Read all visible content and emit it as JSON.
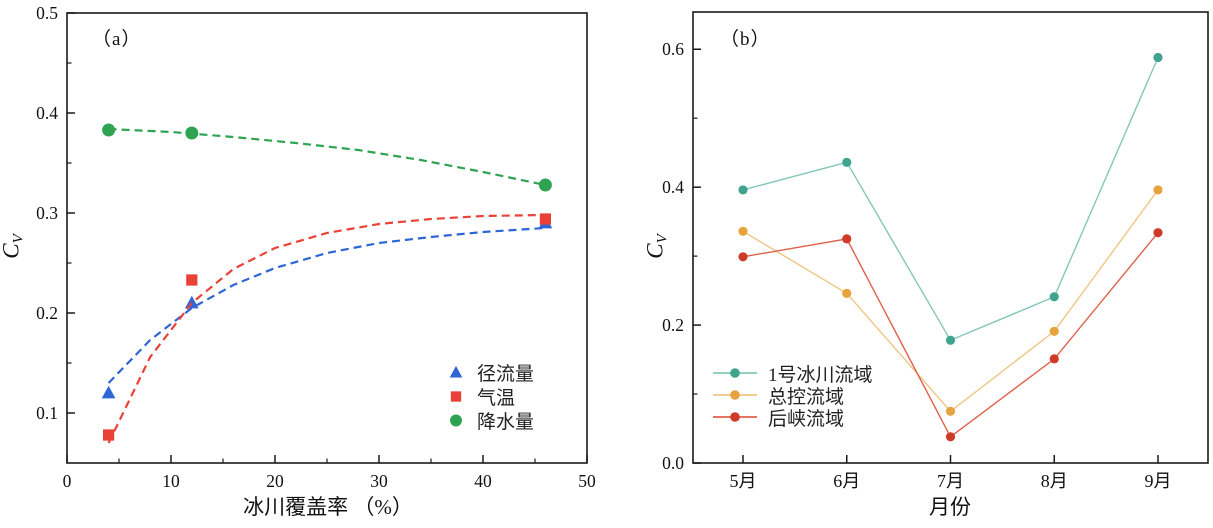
{
  "figure": {
    "background": "#ffffff",
    "axis_color": "#1a1a1a"
  },
  "chart_data": [
    {
      "panel": "a",
      "type": "scatter",
      "title": "（a）",
      "xlabel": "冰川覆盖率 （%）",
      "ylabel_main": "C",
      "ylabel_sub": "V",
      "xlim": [
        0,
        50
      ],
      "ylim": [
        0.05,
        0.5
      ],
      "xticks": [
        0,
        10,
        20,
        30,
        40,
        50
      ],
      "xtick_labels": [
        "0",
        "10",
        "20",
        "30",
        "40",
        "50"
      ],
      "yticks": [
        0.1,
        0.2,
        0.3,
        0.4,
        0.5
      ],
      "ytick_labels": [
        "0.1",
        "0.2",
        "0.3",
        "0.4",
        "0.5"
      ],
      "x_minor_step": 5,
      "y_minor_step": 0.05,
      "grid": false,
      "legend_position": "lower-right",
      "series": [
        {
          "name": "径流量",
          "marker": "triangle",
          "color": "#2e66d6",
          "x": [
            4,
            12,
            46
          ],
          "y": [
            0.12,
            0.21,
            0.29
          ],
          "trend_style": "dashed",
          "trend": [
            [
              4,
              0.13
            ],
            [
              8,
              0.173
            ],
            [
              12,
              0.205
            ],
            [
              16,
              0.228
            ],
            [
              20,
              0.245
            ],
            [
              25,
              0.26
            ],
            [
              30,
              0.27
            ],
            [
              35,
              0.276
            ],
            [
              40,
              0.281
            ],
            [
              46,
              0.285
            ]
          ]
        },
        {
          "name": "气温",
          "marker": "square",
          "color": "#e94138",
          "x": [
            4,
            12,
            46
          ],
          "y": [
            0.078,
            0.233,
            0.294
          ],
          "trend_style": "dashed",
          "trend": [
            [
              4,
              0.07
            ],
            [
              8,
              0.156
            ],
            [
              12,
              0.21
            ],
            [
              16,
              0.244
            ],
            [
              20,
              0.265
            ],
            [
              25,
              0.28
            ],
            [
              30,
              0.289
            ],
            [
              35,
              0.294
            ],
            [
              40,
              0.297
            ],
            [
              46,
              0.298
            ]
          ]
        },
        {
          "name": "降水量",
          "marker": "circle",
          "color": "#2fa351",
          "x": [
            4,
            12,
            46
          ],
          "y": [
            0.383,
            0.38,
            0.328
          ],
          "trend_style": "dashed",
          "trend": [
            [
              4,
              0.384
            ],
            [
              10,
              0.381
            ],
            [
              16,
              0.376
            ],
            [
              22,
              0.37
            ],
            [
              28,
              0.363
            ],
            [
              34,
              0.353
            ],
            [
              40,
              0.341
            ],
            [
              46,
              0.328
            ]
          ]
        }
      ]
    },
    {
      "panel": "b",
      "type": "line",
      "title": "（b）",
      "xlabel": "月份",
      "ylabel_main": "C",
      "ylabel_sub": "V",
      "categories": [
        "5月",
        "6月",
        "7月",
        "8月",
        "9月"
      ],
      "ylim": [
        0,
        0.654
      ],
      "yticks": [
        0,
        0.2,
        0.4,
        0.6
      ],
      "ytick_labels": [
        "0.0",
        "0.2",
        "0.4",
        "0.6"
      ],
      "y_minor_step": 0.1,
      "grid": false,
      "legend_position": "center-left",
      "series": [
        {
          "name": "1号冰川流域",
          "marker": "circle",
          "color": "#3fa38d",
          "line_color": "#85c7b7",
          "values": [
            0.396,
            0.436,
            0.178,
            0.241,
            0.588
          ]
        },
        {
          "name": "总控流域",
          "marker": "circle",
          "color": "#e6a33e",
          "line_color": "#efc684",
          "values": [
            0.336,
            0.246,
            0.075,
            0.191,
            0.396
          ]
        },
        {
          "name": "后峡流域",
          "marker": "circle",
          "color": "#d03a28",
          "line_color": "#e0614a",
          "values": [
            0.299,
            0.325,
            0.038,
            0.151,
            0.334
          ]
        }
      ]
    }
  ]
}
